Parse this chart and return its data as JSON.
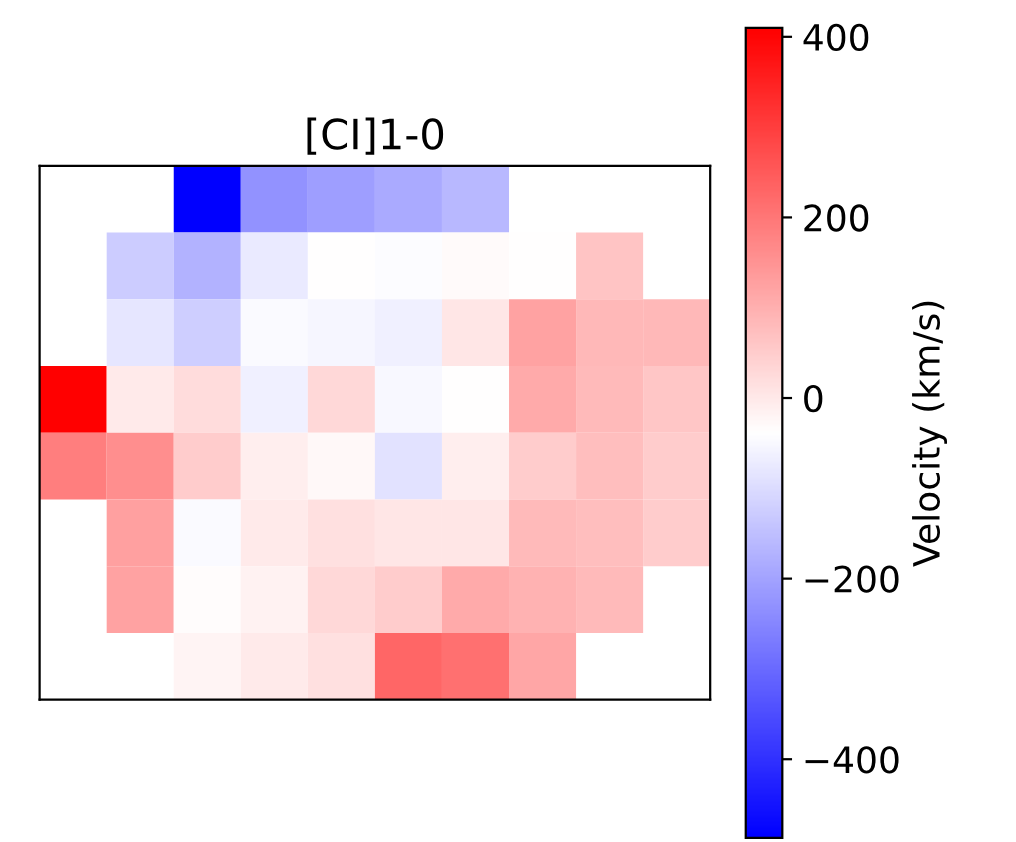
{
  "chart_data": {
    "type": "heatmap",
    "title": "[CI]1-0",
    "clabel": "Velocity (km/s)",
    "categories": [
      null,
      null,
      null,
      null,
      null,
      null,
      null,
      null,
      null,
      null
    ],
    "y_categories": [
      null,
      null,
      null,
      null,
      null,
      null,
      null,
      null
    ],
    "cells": [
      [
        null,
        null,
        -487,
        -231,
        -209,
        -187,
        -164,
        null,
        null,
        null
      ],
      [
        null,
        -128,
        -173,
        -75,
        -38,
        -45,
        -30,
        -38,
        65,
        null
      ],
      [
        null,
        -83,
        -124,
        -47,
        -56,
        -65,
        6,
        123,
        87,
        87
      ],
      [
        410,
        -3,
        24,
        -65,
        29,
        -52,
        -38,
        110,
        83,
        60
      ],
      [
        186,
        159,
        51,
        -7,
        -25,
        -88,
        -7,
        51,
        74,
        51
      ],
      [
        null,
        127,
        -47,
        -3,
        15,
        6,
        6,
        83,
        74,
        51
      ],
      [
        null,
        123,
        -34,
        -16,
        29,
        51,
        110,
        96,
        83,
        null
      ],
      [
        null,
        null,
        -20,
        -3,
        15,
        231,
        213,
        118,
        null,
        null
      ]
    ],
    "clim": [
      -487,
      410
    ],
    "cticks": [
      -400,
      -200,
      0,
      200,
      400
    ],
    "tick_labels": false
  }
}
